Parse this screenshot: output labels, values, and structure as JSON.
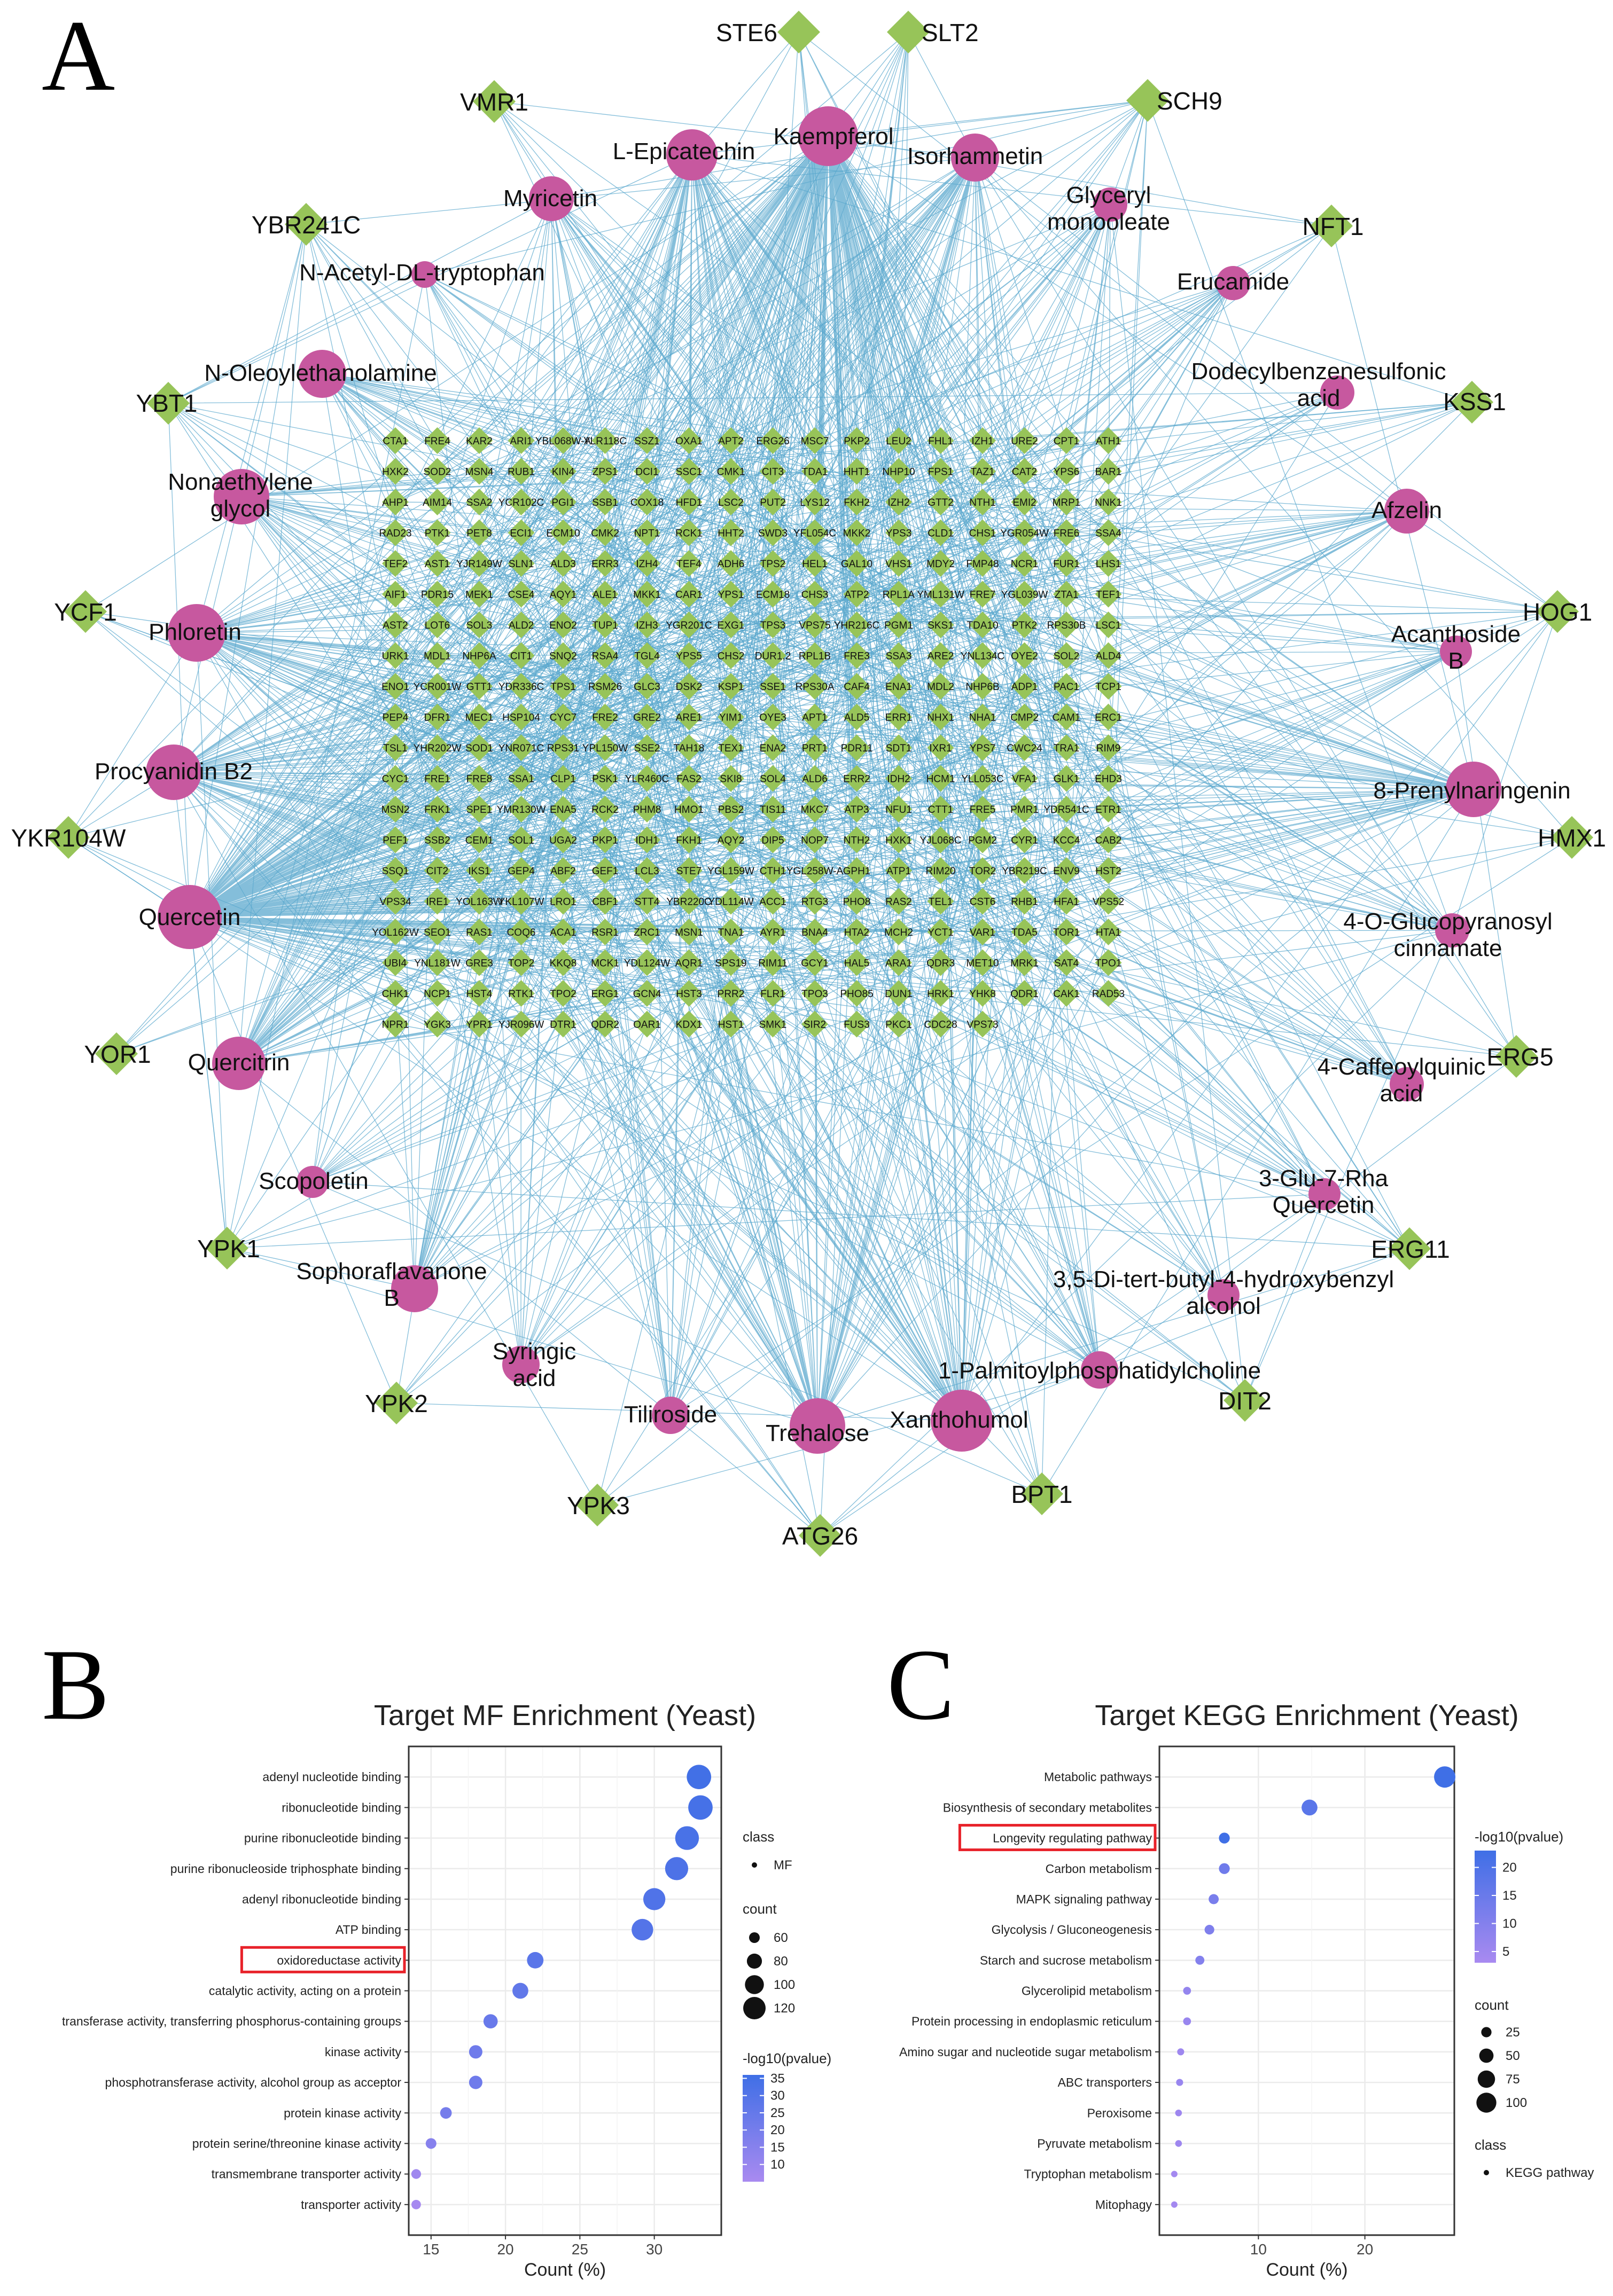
{
  "panel_labels": [
    "A",
    "B",
    "C"
  ],
  "colors": {
    "compound": "#C7589F",
    "target": "#97C459",
    "edge": "#5BA8CE",
    "highlight_box": "#E8222A",
    "dot_high": "#3F6FE6",
    "dot_low": "#A98AF0",
    "grid": "#EBEBEB"
  },
  "network": {
    "compounds": [
      {
        "label": "Kaempferol",
        "size": 5
      },
      {
        "label": "L-Epicatechin",
        "size": 4
      },
      {
        "label": "Isorhamnetin",
        "size": 4
      },
      {
        "label": "Myricetin",
        "size": 3
      },
      {
        "label": "Glyceryl monooleate",
        "size": 2
      },
      {
        "label": "N-Acetyl-DL-tryptophan",
        "size": 1
      },
      {
        "label": "Erucamide",
        "size": 2
      },
      {
        "label": "N-Oleoylethanolamine",
        "size": 3
      },
      {
        "label": "Dodecylbenzenesulfonic acid",
        "size": 2
      },
      {
        "label": "Nonaethylene glycol",
        "size": 3
      },
      {
        "label": "Afzelin",
        "size": 3
      },
      {
        "label": "Phloretin",
        "size": 4
      },
      {
        "label": "Acanthoside B",
        "size": 2
      },
      {
        "label": "Procyanidin B2",
        "size": 4
      },
      {
        "label": "8-Prenylnaringenin",
        "size": 4
      },
      {
        "label": "Quercetin",
        "size": 5
      },
      {
        "label": "4-O-Glucopyranosyl cinnamate",
        "size": 2
      },
      {
        "label": "Quercitrin",
        "size": 4
      },
      {
        "label": "4-Caffeoylquinic acid",
        "size": 2
      },
      {
        "label": "Scopoletin",
        "size": 2
      },
      {
        "label": "3-Glu-7-Rha Quercetin",
        "size": 2
      },
      {
        "label": "Sophoraflavanone B",
        "size": 3
      },
      {
        "label": "3,5-Di-tert-butyl-4-hydroxybenzyl alcohol",
        "size": 2
      },
      {
        "label": "Syringic acid",
        "size": 2
      },
      {
        "label": "1-Palmitoylphosphatidylcholine",
        "size": 2
      },
      {
        "label": "Tiliroside",
        "size": 2
      },
      {
        "label": "Trehalose",
        "size": 4
      },
      {
        "label": "Xanthohumol",
        "size": 4
      }
    ],
    "outer_targets": [
      "STE6",
      "SLT2",
      "VMR1",
      "SCH9",
      "YBR241C",
      "NFT1",
      "YBT1",
      "KSS1",
      "YCF1",
      "HOG1",
      "YKR104W",
      "HMX1",
      "YOR1",
      "ERG5",
      "YPK1",
      "ERG11",
      "YPK2",
      "DIT2",
      "YPK3",
      "BPT1",
      "ATG26"
    ],
    "grid_targets": [
      [
        "CTA1",
        "FRE4",
        "KAR2",
        "ARI1",
        "YBL068W-A",
        "YLR118C",
        "SSZ1",
        "OXA1",
        "APT2",
        "ERG26",
        "MSC7",
        "PKP2",
        "LEU2",
        "FHL1",
        "IZH1",
        "URE2",
        "CPT1",
        "ATH1"
      ],
      [
        "HXK2",
        "SOD2",
        "MSN4",
        "RUB1",
        "KIN4",
        "ZPS1",
        "DCI1",
        "SSC1",
        "CMK1",
        "CIT3",
        "TDA1",
        "HHT1",
        "NHP10",
        "FPS1",
        "TAZ1",
        "CAT2",
        "YPS6",
        "BAR1"
      ],
      [
        "AHP1",
        "AIM14",
        "SSA2",
        "YCR102C",
        "PGI1",
        "SSB1",
        "COX18",
        "HFD1",
        "LSC2",
        "PUT2",
        "LYS12",
        "FKH2",
        "IZH2",
        "GTT2",
        "NTH1",
        "EMI2",
        "MRP1",
        "NNK1"
      ],
      [
        "RAD23",
        "PTK1",
        "PET8",
        "ECI1",
        "ECM10",
        "CMK2",
        "NPT1",
        "RCK1",
        "HHT2",
        "SWD3",
        "YFL054C",
        "MKK2",
        "YPS3",
        "CLD1",
        "CHS1",
        "YGR054W",
        "FRE6",
        "SSA4"
      ],
      [
        "TEF2",
        "AST1",
        "YJR149W",
        "SLN1",
        "ALD3",
        "ERR3",
        "IZH4",
        "TEF4",
        "ADH6",
        "TPS2",
        "HEL1",
        "GAL10",
        "VHS1",
        "MDY2",
        "FMP48",
        "NCR1",
        "FUR1",
        "LHS1"
      ],
      [
        "AIF1",
        "PDR15",
        "MEK1",
        "CSE4",
        "AQY1",
        "ALE1",
        "MKK1",
        "CAR1",
        "YPS1",
        "ECM18",
        "CHS3",
        "ATP2",
        "RPL1A",
        "YML131W",
        "FRE7",
        "YGL039W",
        "ZTA1",
        "TEF1"
      ],
      [
        "AST2",
        "LOT6",
        "SOL3",
        "ALD2",
        "ENO2",
        "TUP1",
        "IZH3",
        "YGR201C",
        "EXG1",
        "TPS3",
        "VPS75",
        "YHR216C",
        "PGM1",
        "SKS1",
        "TDA10",
        "PTK2",
        "RPS30B",
        "LSC1"
      ],
      [
        "URK1",
        "MDL1",
        "NHP6A",
        "CIT1",
        "SNQ2",
        "RSA4",
        "TGL4",
        "YPS5",
        "CHS2",
        "DUR1,2",
        "RPL1B",
        "FRE3",
        "SSA3",
        "ARE2",
        "YNL134C",
        "OYE2",
        "SOL2",
        "ALD4"
      ],
      [
        "ENO1",
        "YCR001W",
        "GTT1",
        "YDR336C",
        "TPS1",
        "RSM26",
        "GLC3",
        "DSK2",
        "KSP1",
        "SSE1",
        "RPS30A",
        "CAF4",
        "ENA1",
        "MDL2",
        "NHP6B",
        "ADP1",
        "PAC1",
        "TCP1"
      ],
      [
        "PEP4",
        "DFR1",
        "MEC1",
        "HSP104",
        "CYC7",
        "FRE2",
        "GRE2",
        "ARE1",
        "YIM1",
        "OYE3",
        "APT1",
        "ALD5",
        "ERR1",
        "NHX1",
        "NHA1",
        "CMP2",
        "CAM1",
        "ERC1"
      ],
      [
        "TSL1",
        "YHR202W",
        "SOD1",
        "YNR071C",
        "RPS31",
        "YPL150W",
        "SSE2",
        "TAH18",
        "TEX1",
        "ENA2",
        "PRT1",
        "PDR11",
        "SDT1",
        "IXR1",
        "YPS7",
        "CWC24",
        "TRA1",
        "RIM9"
      ],
      [
        "CYC1",
        "FRE1",
        "FRE8",
        "SSA1",
        "CLP1",
        "PSK1",
        "YLR460C",
        "FAS2",
        "SKI8",
        "SOL4",
        "ALD6",
        "ERR2",
        "IDH2",
        "HCM1",
        "YLL053C",
        "VFA1",
        "GLK1",
        "EHD3"
      ],
      [
        "MSN2",
        "FRK1",
        "SPE1",
        "YMR130W",
        "ENA5",
        "RCK2",
        "PHM8",
        "HMO1",
        "PBS2",
        "TIS11",
        "MKC7",
        "ATP3",
        "NFU1",
        "CTT1",
        "FRE5",
        "PMR1",
        "YDR541C",
        "ETR1"
      ],
      [
        "PEF1",
        "SSB2",
        "CEM1",
        "SOL1",
        "UGA2",
        "PKP1",
        "IDH1",
        "FKH1",
        "AQY2",
        "DIP5",
        "NOP7",
        "NTH2",
        "HXK1",
        "YJL068C",
        "PGM2",
        "CYR1",
        "KCC4",
        "CAB2"
      ],
      [
        "SSQ1",
        "CIT2",
        "IKS1",
        "GEP4",
        "ABF2",
        "GEF1",
        "LCL3",
        "STE7",
        "YGL159W",
        "CTH1",
        "YGL258W-A",
        "GPH1",
        "ATP1",
        "RIM20",
        "TOR2",
        "YBR219C",
        "ENV9",
        "HST2"
      ],
      [
        "VPS34",
        "IRE1",
        "YOL163W",
        "YKL107W",
        "LRO1",
        "CBF1",
        "STT4",
        "YBR220C",
        "YDL114W",
        "ACC1",
        "RTG3",
        "PHO8",
        "RAS2",
        "TEL1",
        "CST6",
        "RHB1",
        "HFA1",
        "VPS52"
      ],
      [
        "YOL162W",
        "SEO1",
        "RAS1",
        "COQ6",
        "ACA1",
        "RSR1",
        "ZRC1",
        "MSN1",
        "TNA1",
        "AYR1",
        "BNA4",
        "HTA2",
        "MCH2",
        "YCT1",
        "VAR1",
        "TDA5",
        "TOR1",
        "HTA1"
      ],
      [
        "UBI4",
        "YNL181W",
        "GRE3",
        "TOP2",
        "KKQ8",
        "MCK1",
        "YDL124W",
        "AQR1",
        "SPS19",
        "RIM11",
        "GCY1",
        "HAL5",
        "ARA1",
        "QDR3",
        "MET10",
        "MRK1",
        "SAT4",
        "TPO1"
      ],
      [
        "CHK1",
        "NCP1",
        "HST4",
        "RTK1",
        "TPO2",
        "ERG1",
        "GCN4",
        "HST3",
        "PRR2",
        "FLR1",
        "TPO3",
        "PHO85",
        "DUN1",
        "HRK1",
        "YHK8",
        "QDR1",
        "CAK1",
        "RAD53"
      ],
      [
        "NPR1",
        "YGK3",
        "YPR1",
        "YJR096W",
        "DTR1",
        "QDR2",
        "OAR1",
        "KDX1",
        "HST1",
        "SMK1",
        "SIR2",
        "FUS3",
        "PKC1",
        "CDC28",
        "VPS73"
      ]
    ]
  },
  "chart_data": [
    {
      "panel": "B",
      "type": "scatter",
      "title": "Target MF Enrichment (Yeast)",
      "xlabel": "Count (%)",
      "ylabel": "",
      "xlim": [
        13.5,
        34.5
      ],
      "xticks": [
        15,
        20,
        25,
        30
      ],
      "categories": [
        "adenyl nucleotide binding",
        "ribonucleotide binding",
        "purine ribonucleotide binding",
        "purine ribonucleoside triphosphate binding",
        "adenyl ribonucleotide binding",
        "ATP binding",
        "oxidoreductase activity",
        "catalytic activity, acting on a protein",
        "transferase activity, transferring phosphorus-containing groups",
        "kinase activity",
        "phosphotransferase activity, alcohol group as acceptor",
        "protein kinase activity",
        "protein serine/threonine kinase activity",
        "transmembrane transporter activity",
        "transporter activity"
      ],
      "x": [
        33.0,
        33.1,
        32.2,
        31.5,
        30.0,
        29.2,
        22.0,
        21.0,
        19.0,
        18.0,
        18.0,
        16.0,
        15.0,
        14.0,
        14.0
      ],
      "count": [
        132,
        132,
        128,
        124,
        118,
        115,
        87,
        84,
        76,
        72,
        72,
        64,
        60,
        56,
        55
      ],
      "neg_log10_pvalue": [
        35,
        34,
        33,
        32,
        31,
        30,
        28,
        26,
        24,
        22,
        22,
        20,
        15,
        8,
        6
      ],
      "highlight": "oxidoreductase activity",
      "class_legend": {
        "title": "class",
        "items": [
          "MF"
        ]
      },
      "size_legend": {
        "title": "count",
        "values": [
          60,
          80,
          100,
          120
        ]
      },
      "color_legend": {
        "title": "-log10(pvalue)",
        "ticks": [
          10,
          15,
          20,
          25,
          30,
          35
        ],
        "range": [
          5,
          36
        ]
      }
    },
    {
      "panel": "C",
      "type": "scatter",
      "title": "Target KEGG Enrichment (Yeast)",
      "xlabel": "Count (%)",
      "ylabel": "",
      "xlim": [
        0.7,
        28.4
      ],
      "xticks": [
        10,
        20
      ],
      "categories": [
        "Metabolic pathways",
        "Biosynthesis of secondary metabolites",
        "Longevity regulating pathway",
        "Carbon metabolism",
        "MAPK signaling pathway",
        "Glycolysis / Gluconeogenesis",
        "Starch and sucrose metabolism",
        "Glycerolipid metabolism",
        "Protein processing in endoplasmic reticulum",
        "Amino sugar and nucleotide sugar metabolism",
        "ABC transporters",
        "Peroxisome",
        "Pyruvate metabolism",
        "Tryptophan metabolism",
        "Mitophagy"
      ],
      "x": [
        27.5,
        14.8,
        6.8,
        6.8,
        5.8,
        5.4,
        4.5,
        3.3,
        3.3,
        2.7,
        2.6,
        2.5,
        2.5,
        2.1,
        2.1
      ],
      "count": [
        115,
        62,
        28,
        28,
        24,
        22,
        19,
        14,
        14,
        11,
        11,
        10,
        10,
        9,
        9
      ],
      "neg_log10_pvalue": [
        24,
        18,
        23,
        14,
        12,
        11,
        10,
        7,
        6,
        5,
        6,
        5,
        5,
        4,
        4
      ],
      "highlight": "Longevity regulating pathway",
      "color_legend": {
        "title": "-log10(pvalue)",
        "ticks": [
          5,
          10,
          15,
          20
        ],
        "range": [
          3,
          23
        ]
      },
      "size_legend": {
        "title": "count",
        "values": [
          25,
          50,
          75,
          100
        ]
      },
      "class_legend": {
        "title": "class",
        "items": [
          "KEGG pathway"
        ]
      }
    }
  ]
}
